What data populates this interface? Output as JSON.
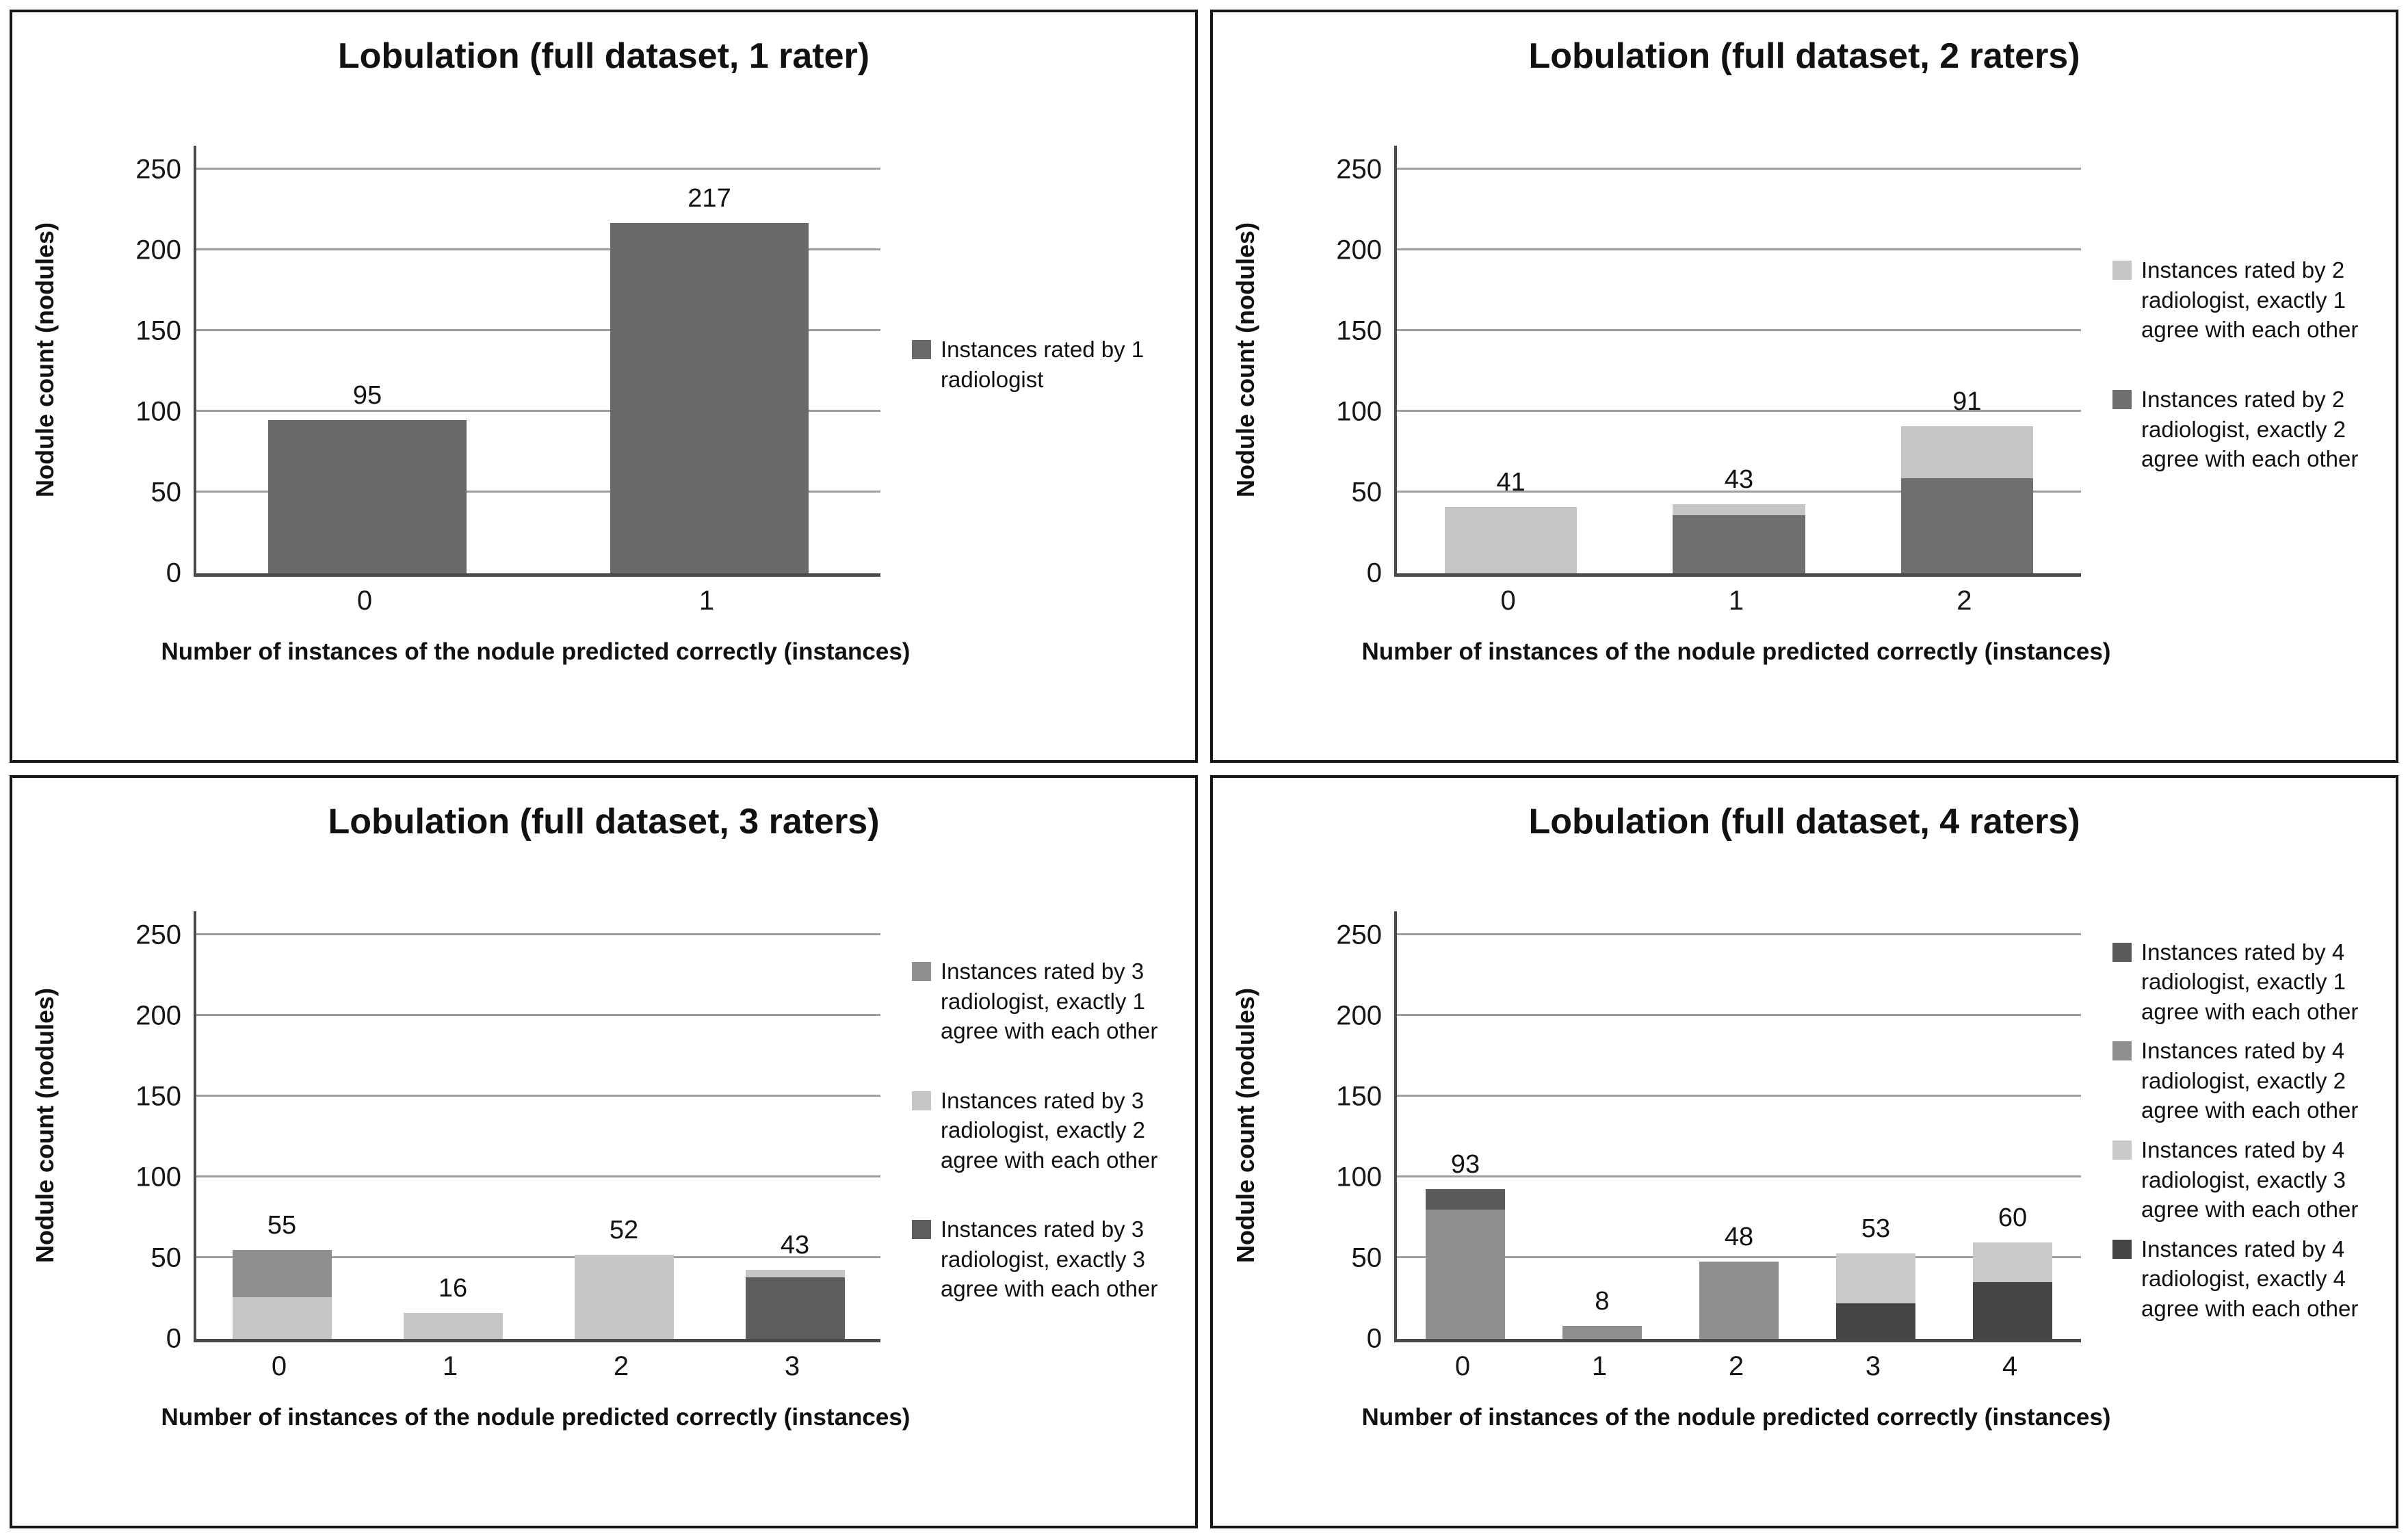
{
  "axis": {
    "yticks": [
      0,
      50,
      100,
      150,
      200,
      250
    ],
    "display_max": 265,
    "ylim": [
      0,
      250
    ],
    "gridline_color": "#9d9d9d",
    "axis_color": "#4a4a4a"
  },
  "chart_data": [
    {
      "type": "bar",
      "title": "Lobulation (full dataset, 1 rater)",
      "ylabel": "Nodule count  (nodules)",
      "xlabel": "Number of instances  of the nodule  predicted correctly  (instances)",
      "categories": [
        "0",
        "1"
      ],
      "totals": [
        95,
        217
      ],
      "legend_position": "right",
      "grid": "horizontal",
      "series": [
        {
          "name": "Instances rated by 1 radiologist",
          "color": "#696969",
          "values": [
            95,
            217
          ]
        }
      ]
    },
    {
      "type": "stacked-bar",
      "title": "Lobulation (full dataset, 2 raters)",
      "ylabel": "Nodule count  (nodules)",
      "xlabel": "Number of instances  of the nodule  predicted correctly  (instances)",
      "categories": [
        "0",
        "1",
        "2"
      ],
      "totals": [
        41,
        43,
        91
      ],
      "legend_position": "right",
      "grid": "horizontal",
      "series": [
        {
          "name": "Instances rated by 2 radiologist, exactly 1 agree with each other",
          "color": "#c6c6c6",
          "values": [
            41,
            7,
            32
          ]
        },
        {
          "name": "Instances rated by 2 radiologist, exactly 2 agree with each other",
          "color": "#6f6f6f",
          "values": [
            0,
            36,
            59
          ]
        }
      ]
    },
    {
      "type": "stacked-bar",
      "title": "Lobulation (full dataset, 3 raters)",
      "ylabel": "Nodule count  (nodules)",
      "xlabel": "Number of instances  of the nodule  predicted correctly  (instances)",
      "categories": [
        "0",
        "1",
        "2",
        "3"
      ],
      "totals": [
        55,
        16,
        52,
        43
      ],
      "legend_position": "right",
      "grid": "horizontal",
      "series": [
        {
          "name": "Instances rated by 3 radiologist, exactly 1 agree with each other",
          "color": "#8f8f8f",
          "values": [
            29,
            0,
            0,
            0
          ]
        },
        {
          "name": "Instances rated by 3 radiologist, exactly 2 agree with each other",
          "color": "#c6c6c6",
          "values": [
            26,
            16,
            52,
            5
          ]
        },
        {
          "name": "Instances rated by 3 radiologist, exactly 3 agree with each other",
          "color": "#5d5d5d",
          "values": [
            0,
            0,
            0,
            38
          ]
        }
      ]
    },
    {
      "type": "stacked-bar",
      "title": "Lobulation (full dataset, 4 raters)",
      "ylabel": "Nodule count  (nodules)",
      "xlabel": "Number of instances  of the nodule  predicted correctly  (instances)",
      "categories": [
        "0",
        "1",
        "2",
        "3",
        "4"
      ],
      "totals": [
        93,
        8,
        48,
        53,
        60
      ],
      "legend_position": "right",
      "grid": "horizontal",
      "series": [
        {
          "name": "Instances rated by 4 radiologist, exactly 1 agree with each other",
          "color": "#5a5a5a",
          "values": [
            13,
            0,
            0,
            0,
            0
          ]
        },
        {
          "name": "Instances rated by 4 radiologist, exactly 2 agree with each other",
          "color": "#8f8f8f",
          "values": [
            80,
            8,
            48,
            0,
            0
          ]
        },
        {
          "name": "Instances rated by 4 radiologist, exactly 3 agree with each other",
          "color": "#cacaca",
          "values": [
            0,
            0,
            0,
            31,
            25
          ]
        },
        {
          "name": "Instances rated by 4 radiologist, exactly 4 agree with each other",
          "color": "#454545",
          "values": [
            0,
            0,
            0,
            22,
            35
          ]
        }
      ]
    }
  ]
}
